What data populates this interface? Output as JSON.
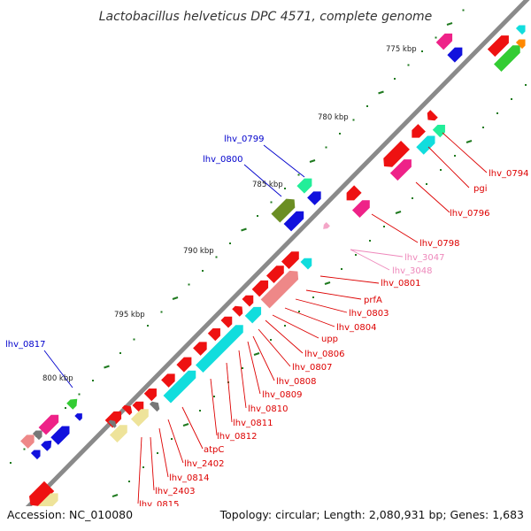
{
  "title": "Lactobacillus helveticus DPC 4571, complete genome",
  "footer": {
    "accession": "Accession: NC_010080",
    "summary": "Topology: circular; Length: 2,080,931 bp; Genes: 1,683"
  },
  "colors": {
    "backbone": "#8a8a8a",
    "tick": "#1f7a1f",
    "gene_red": "#ee1111",
    "gene_pink": "#ee2288",
    "gene_cyan": "#11dddd",
    "gene_blue": "#1111dd",
    "gene_aqua": "#22ee99",
    "gene_olive": "#6b8e23",
    "gene_salmon": "#ee8888",
    "gene_khaki": "#eee39a",
    "gene_grey": "#777777",
    "gene_lightpink": "#f4a6c8",
    "gene_green": "#33cc33",
    "gene_orange": "#ff8800",
    "label_red": "#dd0000",
    "label_blue": "#0000cc",
    "label_pink": "#ee88bb"
  },
  "ticks": [
    "775 kbp",
    "780 kbp",
    "785 kbp",
    "790 kbp",
    "795 kbp",
    "800 kbp"
  ],
  "gene_labels": [
    {
      "text": "lhv_0794",
      "color": "red"
    },
    {
      "text": "pgi",
      "color": "red"
    },
    {
      "text": "lhv_0796",
      "color": "red"
    },
    {
      "text": "lhv_0798",
      "color": "red"
    },
    {
      "text": "lhv_3047",
      "color": "pink"
    },
    {
      "text": "lhv_3048",
      "color": "pink"
    },
    {
      "text": "lhv_0801",
      "color": "red"
    },
    {
      "text": "prfA",
      "color": "red"
    },
    {
      "text": "lhv_0803",
      "color": "red"
    },
    {
      "text": "lhv_0804",
      "color": "red"
    },
    {
      "text": "upp",
      "color": "red"
    },
    {
      "text": "lhv_0806",
      "color": "red"
    },
    {
      "text": "lhv_0807",
      "color": "red"
    },
    {
      "text": "lhv_0808",
      "color": "red"
    },
    {
      "text": "lhv_0809",
      "color": "red"
    },
    {
      "text": "lhv_0810",
      "color": "red"
    },
    {
      "text": "lhv_0811",
      "color": "red"
    },
    {
      "text": "lhv_0812",
      "color": "red"
    },
    {
      "text": "atpC",
      "color": "red"
    },
    {
      "text": "lhv_2402",
      "color": "red"
    },
    {
      "text": "lhv_0814",
      "color": "red"
    },
    {
      "text": "lhv_2403",
      "color": "red"
    },
    {
      "text": "lhv_0815",
      "color": "red"
    },
    {
      "text": "lhv_0799",
      "color": "blue"
    },
    {
      "text": "lhv_0800",
      "color": "blue"
    },
    {
      "text": "lhv_0817",
      "color": "blue"
    }
  ]
}
